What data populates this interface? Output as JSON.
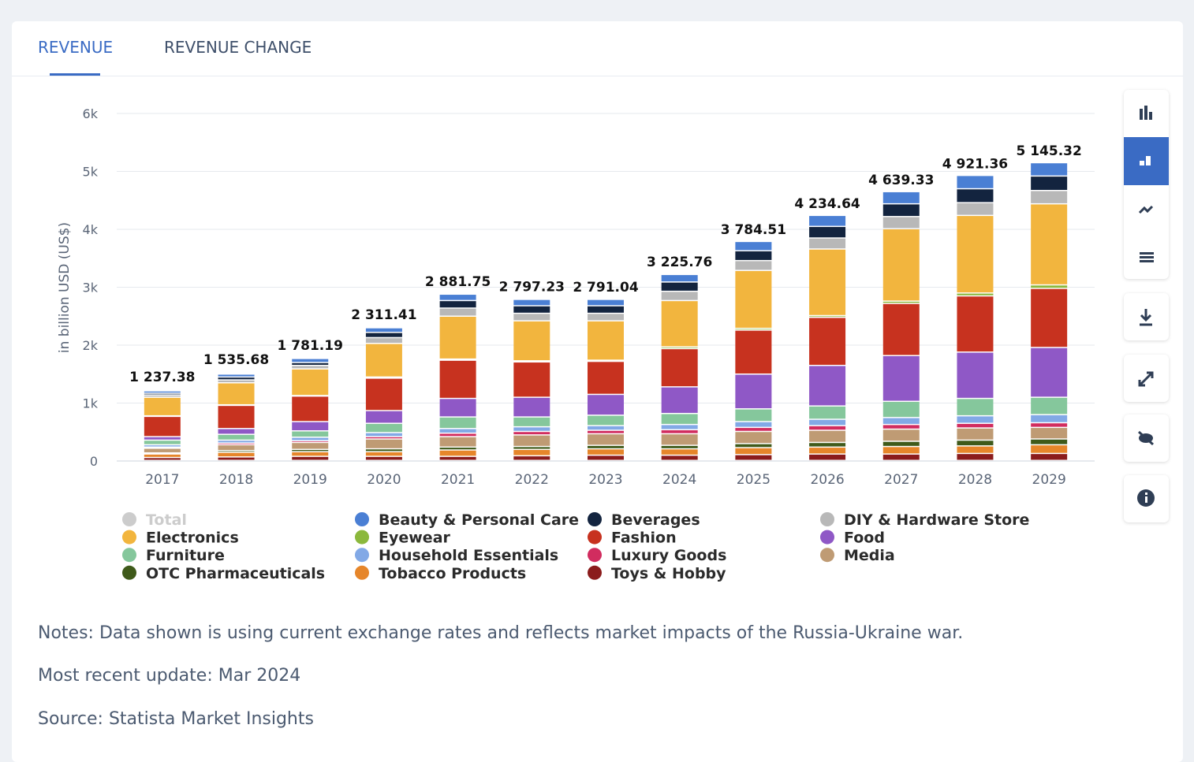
{
  "tabs": [
    "REVENUE",
    "REVENUE CHANGE"
  ],
  "chart_data": {
    "type": "stacked-bar",
    "y_label": "in billion USD (US$)",
    "categories": [
      "2017",
      "2018",
      "2019",
      "2020",
      "2021",
      "2022",
      "2023",
      "2024",
      "2025",
      "2026",
      "2027",
      "2028",
      "2029"
    ],
    "ylim": [
      0,
      6000
    ],
    "yticks": [
      0,
      {
        "value": 1000,
        "label": "1k"
      },
      {
        "value": 2000,
        "label": "2k"
      },
      {
        "value": 3000,
        "label": "3k"
      },
      {
        "value": 4000,
        "label": "4k"
      },
      {
        "value": 5000,
        "label": "5k"
      },
      {
        "value": 6000,
        "label": "6k"
      }
    ],
    "grid": true,
    "series": [
      {
        "name": "Total",
        "color": "#c8c8c8",
        "visible": false,
        "values": [
          1237.38,
          1535.68,
          1781.19,
          2311.41,
          2881.75,
          2797.23,
          2791.04,
          3225.76,
          3784.51,
          4234.64,
          4639.33,
          4921.36,
          5145.32
        ],
        "value_labels": [
          "1 237.38",
          "1 535.68",
          "1 781.19",
          "2 311.41",
          "2 881.75",
          "2 797.23",
          "2 791.04",
          "3 225.76",
          "3 784.51",
          "4 234.64",
          "4 639.33",
          "4 921.36",
          "5 145.32"
        ]
      },
      {
        "name": "Beauty & Personal Care",
        "color": "#4a7fd4",
        "values": [
          40,
          50,
          70,
          80,
          110,
          110,
          110,
          130,
          160,
          190,
          210,
          230,
          230
        ]
      },
      {
        "name": "Beverages",
        "color": "#13243f",
        "values": [
          30,
          50,
          50,
          90,
          130,
          130,
          130,
          160,
          170,
          200,
          220,
          240,
          250
        ]
      },
      {
        "name": "DIY & Hardware Store",
        "color": "#b8b8b8",
        "values": [
          40,
          50,
          60,
          100,
          140,
          130,
          130,
          160,
          170,
          190,
          210,
          220,
          230
        ]
      },
      {
        "name": "Electronics",
        "color": "#f2b53e",
        "values": [
          320,
          380,
          460,
          580,
          740,
          690,
          680,
          800,
          1000,
          1150,
          1250,
          1340,
          1400
        ]
      },
      {
        "name": "Eyewear",
        "color": "#8bb83c",
        "values": [
          10,
          10,
          10,
          20,
          20,
          20,
          20,
          30,
          30,
          30,
          40,
          50,
          60
        ]
      },
      {
        "name": "Fashion",
        "color": "#c7321f",
        "values": [
          350,
          400,
          440,
          560,
          660,
          610,
          570,
          660,
          760,
          830,
          900,
          970,
          1020
        ]
      },
      {
        "name": "Food",
        "color": "#8f58c6",
        "values": [
          60,
          100,
          160,
          220,
          320,
          340,
          360,
          460,
          600,
          700,
          790,
          800,
          860
        ]
      },
      {
        "name": "Furniture",
        "color": "#85c79c",
        "values": [
          80,
          100,
          110,
          160,
          200,
          170,
          180,
          190,
          220,
          230,
          280,
          300,
          300
        ]
      },
      {
        "name": "Household Essentials",
        "color": "#82a9e6",
        "values": [
          40,
          50,
          60,
          70,
          80,
          80,
          80,
          90,
          100,
          110,
          120,
          130,
          140
        ]
      },
      {
        "name": "Luxury Goods",
        "color": "#d12c5f",
        "values": [
          20,
          30,
          30,
          40,
          60,
          60,
          60,
          70,
          70,
          80,
          80,
          80,
          80
        ]
      },
      {
        "name": "Media",
        "color": "#bf9b74",
        "values": [
          80,
          100,
          120,
          170,
          180,
          200,
          200,
          200,
          210,
          210,
          210,
          210,
          200
        ]
      },
      {
        "name": "OTC Pharmaceuticals",
        "color": "#3f5a1a",
        "values": [
          20,
          30,
          40,
          50,
          50,
          50,
          60,
          60,
          70,
          80,
          90,
          100,
          100
        ]
      },
      {
        "name": "Tobacco Products",
        "color": "#e6862a",
        "values": [
          60,
          80,
          80,
          80,
          110,
          110,
          110,
          110,
          120,
          120,
          130,
          130,
          150
        ]
      },
      {
        "name": "Toys & Hobby",
        "color": "#8b1c1c",
        "values": [
          50,
          60,
          70,
          70,
          70,
          80,
          90,
          90,
          100,
          110,
          110,
          120,
          120
        ]
      }
    ]
  },
  "notes": [
    "Notes: Data shown is using current exchange rates and reflects market impacts of the Russia-Ukraine war.",
    "Most recent update: Mar 2024",
    "Source: Statista Market Insights"
  ]
}
